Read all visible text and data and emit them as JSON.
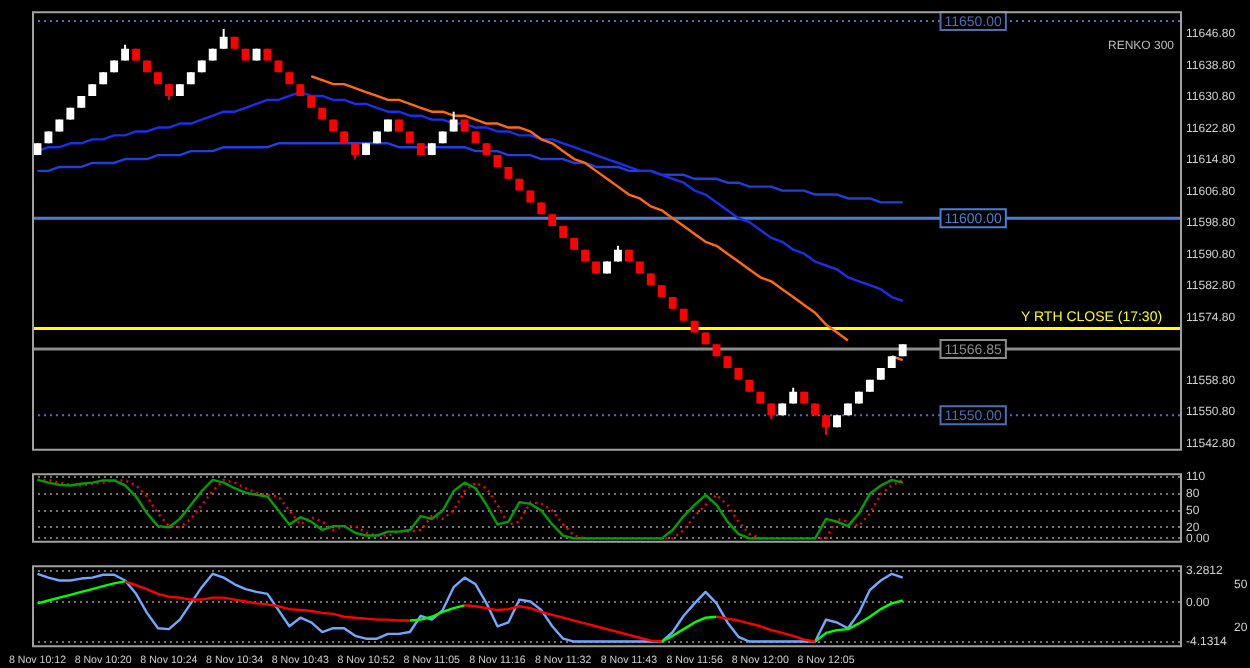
{
  "chart_data": [
    {
      "type": "candlestick",
      "tick_labels": "y",
      "legend": false,
      "marker": "none",
      "annotations": [
        "RENKO 300",
        {
          "text": "Y RTH CLOSE (17:30)",
          "y": 11572
        }
      ],
      "categories": [
        null,
        null,
        null,
        null,
        null,
        null,
        null,
        null,
        null,
        null,
        null,
        null,
        null,
        null,
        null,
        null,
        null,
        null,
        null,
        null,
        null,
        null,
        null,
        null,
        null,
        null,
        null,
        null,
        null,
        null,
        null,
        null,
        null,
        null,
        null,
        null,
        null,
        null,
        null,
        null,
        null,
        null,
        null,
        null,
        null,
        null,
        null,
        null,
        null,
        null,
        null,
        null,
        null,
        null,
        null,
        null,
        null,
        null,
        null,
        null,
        null,
        null,
        null,
        null,
        null,
        null,
        null,
        null,
        null,
        null,
        null,
        null,
        null,
        null,
        null,
        null,
        null,
        null,
        null,
        null,
        null,
        null,
        null,
        null,
        null,
        null,
        null,
        null,
        null,
        null,
        null,
        null,
        null,
        null,
        null,
        null,
        null,
        null,
        null,
        null,
        null,
        null,
        null,
        null,
        null
      ],
      "ohlc": [
        [
          11616,
          11619,
          11616,
          11619
        ],
        [
          11619,
          11622,
          11619,
          11622
        ],
        [
          11622,
          11625,
          11622,
          11625
        ],
        [
          11625,
          11628,
          11625,
          11628
        ],
        [
          11628,
          11631,
          11628,
          11631
        ],
        [
          11631,
          11634,
          11631,
          11634
        ],
        [
          11634,
          11637,
          11634,
          11637
        ],
        [
          11637,
          11640,
          11637,
          11640
        ],
        [
          11640,
          11644,
          11640,
          11643
        ],
        [
          11643,
          11643,
          11640,
          11640
        ],
        [
          11640,
          11640,
          11637,
          11637
        ],
        [
          11637,
          11637,
          11634,
          11634
        ],
        [
          11634,
          11634,
          11630,
          11631
        ],
        [
          11631,
          11634,
          11631,
          11634
        ],
        [
          11634,
          11637,
          11634,
          11637
        ],
        [
          11637,
          11640,
          11637,
          11640
        ],
        [
          11640,
          11643,
          11640,
          11643
        ],
        [
          11643,
          11648,
          11643,
          11646
        ],
        [
          11646,
          11646,
          11643,
          11643
        ],
        [
          11643,
          11643,
          11640,
          11640
        ],
        [
          11640,
          11643,
          11640,
          11643
        ],
        [
          11643,
          11643,
          11640,
          11640
        ],
        [
          11640,
          11640,
          11637,
          11637
        ],
        [
          11637,
          11637,
          11634,
          11634
        ],
        [
          11634,
          11634,
          11631,
          11631
        ],
        [
          11631,
          11631,
          11628,
          11628
        ],
        [
          11628,
          11628,
          11625,
          11625
        ],
        [
          11625,
          11625,
          11622,
          11622
        ],
        [
          11622,
          11622,
          11619,
          11619
        ],
        [
          11619,
          11619,
          11615,
          11616
        ],
        [
          11616,
          11619,
          11616,
          11619
        ],
        [
          11619,
          11622,
          11619,
          11622
        ],
        [
          11622,
          11625,
          11622,
          11625
        ],
        [
          11625,
          11625,
          11622,
          11622
        ],
        [
          11622,
          11622,
          11619,
          11619
        ],
        [
          11619,
          11619,
          11616,
          11616
        ],
        [
          11616,
          11619,
          11616,
          11619
        ],
        [
          11619,
          11622,
          11619,
          11622
        ],
        [
          11622,
          11627,
          11622,
          11625
        ],
        [
          11625,
          11625,
          11622,
          11622
        ],
        [
          11622,
          11622,
          11619,
          11619
        ],
        [
          11619,
          11619,
          11616,
          11616
        ],
        [
          11616,
          11616,
          11613,
          11613
        ],
        [
          11613,
          11613,
          11610,
          11610
        ],
        [
          11610,
          11610,
          11607,
          11607
        ],
        [
          11607,
          11607,
          11604,
          11604
        ],
        [
          11604,
          11604,
          11601,
          11601
        ],
        [
          11601,
          11601,
          11598,
          11598
        ],
        [
          11598,
          11598,
          11595,
          11595
        ],
        [
          11595,
          11595,
          11592,
          11592
        ],
        [
          11592,
          11592,
          11589,
          11589
        ],
        [
          11589,
          11589,
          11586,
          11586
        ],
        [
          11586,
          11589,
          11586,
          11589
        ],
        [
          11589,
          11593,
          11589,
          11592
        ],
        [
          11592,
          11592,
          11589,
          11589
        ],
        [
          11589,
          11589,
          11586,
          11586
        ],
        [
          11586,
          11586,
          11583,
          11583
        ],
        [
          11583,
          11583,
          11580,
          11580
        ],
        [
          11580,
          11580,
          11577,
          11577
        ],
        [
          11577,
          11577,
          11574,
          11574
        ],
        [
          11574,
          11574,
          11571,
          11571
        ],
        [
          11571,
          11571,
          11568,
          11568
        ],
        [
          11568,
          11568,
          11565,
          11565
        ],
        [
          11565,
          11565,
          11562,
          11562
        ],
        [
          11562,
          11562,
          11559,
          11559
        ],
        [
          11559,
          11559,
          11556,
          11556
        ],
        [
          11556,
          11556,
          11553,
          11553
        ],
        [
          11553,
          11553,
          11549,
          11550
        ],
        [
          11550,
          11553,
          11550,
          11553
        ],
        [
          11553,
          11557,
          11553,
          11556
        ],
        [
          11556,
          11556,
          11553,
          11553
        ],
        [
          11553,
          11553,
          11550,
          11550
        ],
        [
          11550,
          11550,
          11545,
          11547
        ],
        [
          11547,
          11550,
          11547,
          11550
        ],
        [
          11550,
          11553,
          11550,
          11553
        ],
        [
          11553,
          11556,
          11553,
          11556
        ],
        [
          11556,
          11559,
          11556,
          11559
        ],
        [
          11559,
          11562,
          11559,
          11562
        ],
        [
          11562,
          11565,
          11562,
          11565
        ],
        [
          11565,
          11568,
          11565,
          11568
        ],
        null,
        null,
        null,
        null,
        null,
        null,
        null,
        null,
        null,
        null,
        null,
        null,
        null,
        null,
        null,
        null,
        null,
        null,
        null,
        null,
        null,
        null,
        null,
        null,
        null
      ],
      "colors": [
        "#ffffff",
        "#ffffff",
        "#ffffff",
        "#ffffff",
        "#ffffff",
        "#ffffff",
        "#ffffff",
        "#ffffff",
        "#ffffff",
        "#ff0000",
        "#ff0000",
        "#ff0000",
        "#ff0000",
        "#ffffff",
        "#ffffff",
        "#ffffff",
        "#ffffff",
        "#ffffff",
        "#ff0000",
        "#ff0000",
        "#ffffff",
        "#ff0000",
        "#ff0000",
        "#ff0000",
        "#ff0000",
        "#ff0000",
        "#ff0000",
        "#ff0000",
        "#ff0000",
        "#ff0000",
        "#ffffff",
        "#ffffff",
        "#ffffff",
        "#ff0000",
        "#ff0000",
        "#ff0000",
        "#ffffff",
        "#ffffff",
        "#ffffff",
        "#ff0000",
        "#ff0000",
        "#ff0000",
        "#ff0000",
        "#ff0000",
        "#ff0000",
        "#ff0000",
        "#ff0000",
        "#ff0000",
        "#ff0000",
        "#ff0000",
        "#ff0000",
        "#ff0000",
        "#ffffff",
        "#ffffff",
        "#ff0000",
        "#ff0000",
        "#ff0000",
        "#ff0000",
        "#ff0000",
        "#ff0000",
        "#ff0000",
        "#ff0000",
        "#ff0000",
        "#ff0000",
        "#ff0000",
        "#ff0000",
        "#ff0000",
        "#ff0000",
        "#ffffff",
        "#ffffff",
        "#ff0000",
        "#ff0000",
        "#ff0000",
        "#ffffff",
        "#ffffff",
        "#ffffff",
        "#ffffff",
        "#ffffff",
        "#ffffff",
        "#ffffff",
        null,
        null,
        null,
        null,
        null,
        null,
        null,
        null,
        null,
        null,
        null,
        null,
        null,
        null,
        null,
        null,
        null,
        null,
        null,
        null,
        null,
        null,
        null,
        null,
        null
      ],
      "series": [
        {
          "type": "line",
          "color": "#1f3fe0",
          "values": [
            11612,
            11612,
            11613,
            11613,
            11613,
            11614,
            11614,
            11614,
            11615,
            11615,
            11615,
            11616,
            11616,
            11616,
            11617,
            11617,
            11617,
            11618,
            11618,
            11618,
            11618,
            11618,
            11619,
            11619,
            11619,
            11619,
            11619,
            11619,
            11619,
            11619,
            11619,
            11619,
            11619,
            11618,
            11618,
            11618,
            11618,
            11618,
            11618,
            11618,
            11617,
            11617,
            11617,
            11616,
            11616,
            11616,
            11615,
            11615,
            11615,
            11614,
            11614,
            11613,
            11613,
            11613,
            11612,
            11612,
            11612,
            11611,
            11611,
            11611,
            11610,
            11610,
            11610,
            11609,
            11609,
            11608,
            11608,
            11608,
            11607,
            11607,
            11607,
            11606,
            11606,
            11606,
            11605,
            11605,
            11605,
            11604,
            11604,
            11604,
            null,
            null,
            null,
            null,
            null,
            null,
            null,
            null,
            null,
            null,
            null,
            null,
            null,
            null,
            null,
            null,
            null,
            null,
            null,
            null,
            null,
            null,
            null,
            null,
            null
          ]
        },
        {
          "type": "line",
          "color": "#1c2ee8",
          "values": [
            11617,
            11618,
            11618,
            11619,
            11619,
            11620,
            11620,
            11621,
            11621,
            11622,
            11622,
            11623,
            11623,
            11624,
            11624,
            11625,
            11626,
            11627,
            11627,
            11628,
            11629,
            11630,
            11630,
            11631,
            11632,
            11631,
            11631,
            11630,
            11630,
            11629,
            11629,
            11628,
            11627,
            11627,
            11626,
            11626,
            11625,
            11625,
            11624,
            11624,
            11623,
            11623,
            11622,
            11622,
            11621,
            11621,
            11620,
            11620,
            11619,
            11618,
            11617,
            11616,
            11615,
            11614,
            11613,
            11612,
            11612,
            11611,
            11610,
            11609,
            11607,
            11606,
            11604,
            11602,
            11600,
            11599,
            11597,
            11595,
            11594,
            11592,
            11591,
            11589,
            11588,
            11587,
            11585,
            11584,
            11583,
            11582,
            11580,
            11579,
            null,
            null,
            null,
            null,
            null,
            null,
            null,
            null,
            null,
            null,
            null,
            null,
            null,
            null,
            null,
            null,
            null,
            null,
            null,
            null,
            null,
            null,
            null,
            null,
            null
          ]
        },
        {
          "type": "line",
          "color": "#ff6a10",
          "values": [
            null,
            null,
            null,
            null,
            null,
            null,
            null,
            null,
            null,
            null,
            null,
            null,
            null,
            null,
            null,
            null,
            null,
            null,
            null,
            null,
            null,
            null,
            null,
            null,
            null,
            11636,
            11635,
            11634,
            11634,
            11633,
            11632,
            11631,
            11630,
            11630,
            11629,
            11628,
            11627,
            11627,
            11626,
            11626,
            11625,
            11624,
            11624,
            11623,
            11623,
            11622,
            11620,
            11619,
            11617,
            11615,
            11614,
            11612,
            11610,
            11608,
            11606,
            11605,
            11603,
            11602,
            11600,
            11598,
            11596,
            11594,
            11593,
            11591,
            11589,
            11587,
            11585,
            11584,
            11582,
            11580,
            11578,
            11576,
            11573,
            11571,
            11569,
            null,
            null,
            null,
            11565,
            11564,
            null,
            null,
            null,
            null,
            null,
            null,
            null,
            null,
            null,
            null,
            null,
            null,
            null,
            null,
            null,
            null,
            null,
            null,
            null,
            null,
            null,
            null,
            null,
            null,
            null
          ]
        }
      ],
      "ref_lines": [
        {
          "axis": "y",
          "value": 11650,
          "label": "11650.00",
          "color": "#4a6fb5",
          "line_style": "dotted"
        },
        {
          "axis": "y",
          "value": 11600,
          "label": "11600.00",
          "color": "#4a7fd8",
          "line_style": "solid"
        },
        {
          "axis": "y",
          "value": 11550,
          "label": "11550.00",
          "color": "#4a6fb5",
          "line_style": "dotted"
        },
        {
          "axis": "y",
          "value": 11572,
          "color": "#ffff00",
          "line_style": "solid"
        },
        {
          "axis": "y",
          "value": 11566.85,
          "label": "11566.85",
          "color": "#8c8c8c",
          "line_style": "solid"
        }
      ],
      "ylim": [
        11541,
        11652.5
      ],
      "yticks": [
        {
          "value": 11542.8,
          "label": "11542.80"
        },
        {
          "value": 11550.8,
          "label": "11550.80"
        },
        {
          "value": 11558.8,
          "label": "11558.80"
        },
        {
          "value": 11574.8,
          "label": "11574.80"
        },
        {
          "value": 11582.8,
          "label": "11582.80"
        },
        {
          "value": 11590.8,
          "label": "11590.80"
        },
        {
          "value": 11598.8,
          "label": "11598.80"
        },
        {
          "value": 11606.8,
          "label": "11606.80"
        },
        {
          "value": 11614.8,
          "label": "11614.80"
        },
        {
          "value": 11622.8,
          "label": "11622.80"
        },
        {
          "value": 11630.8,
          "label": "11630.80"
        },
        {
          "value": 11638.8,
          "label": "11638.80"
        },
        {
          "value": 11646.8,
          "label": "11646.80"
        }
      ]
    },
    {
      "type": "line",
      "tick_labels": "y",
      "legend": false,
      "marker": "none",
      "grid": "y",
      "categories": [
        null,
        null,
        null,
        null,
        null,
        null,
        null,
        null,
        null,
        null,
        null,
        null,
        null,
        null,
        null,
        null,
        null,
        null,
        null,
        null,
        null,
        null,
        null,
        null,
        null,
        null,
        null,
        null,
        null,
        null,
        null,
        null,
        null,
        null,
        null,
        null,
        null,
        null,
        null,
        null,
        null,
        null,
        null,
        null,
        null,
        null,
        null,
        null,
        null,
        null,
        null,
        null,
        null,
        null,
        null,
        null,
        null,
        null,
        null,
        null,
        null,
        null,
        null,
        null,
        null,
        null,
        null,
        null,
        null,
        null,
        null,
        null,
        null,
        null,
        null,
        null,
        null,
        null,
        null,
        null,
        null,
        null,
        null,
        null,
        null,
        null,
        null,
        null,
        null,
        null,
        null,
        null,
        null,
        null,
        null,
        null,
        null,
        null,
        null,
        null,
        null,
        null,
        null,
        null,
        null
      ],
      "series": [
        {
          "type": "line",
          "color": "#ff0000",
          "line_style": "dotted",
          "values": [
            105,
            105,
            100,
            96,
            95,
            98,
            100,
            104,
            104,
            95,
            75,
            45,
            22,
            20,
            35,
            60,
            85,
            105,
            100,
            90,
            82,
            78,
            75,
            50,
            25,
            38,
            30,
            15,
            22,
            22,
            10,
            5,
            5,
            12,
            12,
            15,
            40,
            35,
            50,
            85,
            100,
            90,
            60,
            25,
            30,
            65,
            62,
            50,
            25,
            5,
            0,
            0,
            0,
            0,
            0,
            0,
            0,
            0,
            0,
            15,
            40,
            60,
            78,
            60,
            30,
            8,
            0,
            0,
            0,
            0,
            0,
            0,
            0,
            35,
            30,
            22,
            45,
            80,
            95,
            105,
            null,
            null,
            null,
            null,
            null,
            null,
            null,
            null,
            null,
            null,
            null,
            null,
            null,
            null,
            null,
            null,
            null,
            null,
            null,
            null,
            null,
            null,
            null,
            null,
            null
          ]
        },
        {
          "type": "line",
          "color": "#00a000",
          "line_style": "solid",
          "values": [
            105,
            100,
            96,
            95,
            98,
            100,
            104,
            104,
            95,
            75,
            45,
            22,
            20,
            35,
            60,
            85,
            105,
            100,
            90,
            82,
            78,
            75,
            50,
            25,
            38,
            30,
            15,
            22,
            22,
            10,
            5,
            5,
            12,
            12,
            15,
            40,
            35,
            50,
            85,
            100,
            90,
            60,
            25,
            30,
            65,
            62,
            50,
            25,
            5,
            0,
            0,
            0,
            0,
            0,
            0,
            0,
            0,
            0,
            15,
            40,
            60,
            78,
            60,
            30,
            8,
            0,
            0,
            0,
            0,
            0,
            0,
            0,
            35,
            30,
            22,
            45,
            80,
            95,
            105,
            100,
            null,
            null,
            null,
            null,
            null,
            null,
            null,
            null,
            null,
            null,
            null,
            null,
            null,
            null,
            null,
            null,
            null,
            null,
            null,
            null,
            null,
            null,
            null,
            null,
            null
          ]
        }
      ],
      "ylim": [
        -8,
        117
      ],
      "yticks": [
        {
          "value": 0,
          "label": "0.00"
        },
        20,
        50,
        80,
        110
      ]
    },
    {
      "type": "line",
      "legend": false,
      "marker": "none",
      "grid": "y",
      "categories": [
        "8 Nov 10:12",
        null,
        null,
        null,
        null,
        null,
        "8 Nov 10:20",
        null,
        null,
        null,
        null,
        null,
        "8 Nov 10:24",
        null,
        null,
        null,
        null,
        null,
        "8 Nov 10:34",
        null,
        null,
        null,
        null,
        null,
        "8 Nov 10:43",
        null,
        null,
        null,
        null,
        null,
        "8 Nov 10:52",
        null,
        null,
        null,
        null,
        null,
        "8 Nov 11:05",
        null,
        null,
        null,
        null,
        null,
        "8 Nov 11:16",
        null,
        null,
        null,
        null,
        null,
        "8 Nov 11:32",
        null,
        null,
        null,
        null,
        null,
        "8 Nov 11:43",
        null,
        null,
        null,
        null,
        null,
        "8 Nov 11:56",
        null,
        null,
        null,
        null,
        null,
        "8 Nov 12:00",
        null,
        null,
        null,
        null,
        null,
        "8 Nov 12:05",
        null,
        null,
        null,
        null,
        null,
        null,
        null,
        null,
        null,
        null,
        null,
        null,
        null,
        null,
        null,
        null,
        null,
        null,
        null,
        null,
        null,
        null,
        null,
        null,
        null,
        null,
        null,
        null,
        null,
        null,
        null,
        null
      ],
      "series": [
        {
          "type": "line",
          "color": "#6fa8ff",
          "line_style": "solid",
          "values": [
            3.0,
            2.6,
            2.3,
            2.3,
            2.5,
            2.6,
            2.9,
            2.9,
            2.3,
            0.9,
            -1.1,
            -2.7,
            -2.8,
            -1.8,
            -0.1,
            1.6,
            3.0,
            2.6,
            1.9,
            1.4,
            1.1,
            0.9,
            -0.8,
            -2.5,
            -1.6,
            -2.1,
            -3.1,
            -2.7,
            -2.7,
            -3.5,
            -3.8,
            -3.8,
            -3.3,
            -3.3,
            -3.1,
            -1.4,
            -1.8,
            -0.8,
            1.6,
            2.6,
            1.9,
            -0.1,
            -2.5,
            -2.1,
            0.3,
            0.1,
            -0.8,
            -2.5,
            -3.8,
            -4.1,
            -4.1,
            -4.1,
            -4.1,
            -4.1,
            -4.1,
            -4.1,
            -4.1,
            -4.1,
            -3.1,
            -1.4,
            -0.1,
            1.1,
            -0.1,
            -2.1,
            -3.6,
            -4.1,
            -4.1,
            -4.1,
            -4.1,
            -4.1,
            -4.1,
            -4.1,
            -1.8,
            -2.1,
            -2.7,
            -1.1,
            1.3,
            2.3,
            3.0,
            2.6,
            null,
            null,
            null,
            null,
            null,
            null,
            null,
            null,
            null,
            null,
            null,
            null,
            null,
            null,
            null,
            null,
            null,
            null,
            null,
            null,
            null,
            null,
            null,
            null,
            null
          ]
        },
        {
          "type": "line",
          "color": "#00ff00",
          "line_style": "solid",
          "values": [
            -0.1,
            0.2,
            0.5,
            0.8,
            1.1,
            1.4,
            1.7,
            2.0,
            2.2,
            null,
            null,
            null,
            null,
            null,
            null,
            null,
            null,
            null,
            null,
            null,
            null,
            null,
            null,
            null,
            null,
            null,
            null,
            null,
            null,
            null,
            null,
            null,
            null,
            null,
            -1.9,
            -1.8,
            -1.5,
            -1.0,
            -0.6,
            -0.3,
            null,
            null,
            null,
            null,
            null,
            null,
            null,
            null,
            null,
            null,
            null,
            null,
            null,
            null,
            null,
            null,
            null,
            -4.1,
            -3.5,
            -2.8,
            -2.1,
            -1.6,
            -1.5,
            null,
            null,
            null,
            null,
            null,
            null,
            null,
            null,
            -4.1,
            -3.2,
            -2.9,
            -2.8,
            -2.2,
            -1.5,
            -0.7,
            -0.1,
            0.2,
            null,
            null,
            null,
            null,
            null,
            null,
            null,
            null,
            null,
            null,
            null,
            null,
            null,
            null,
            null,
            null,
            null,
            null,
            null,
            null,
            null,
            null,
            null,
            null,
            null
          ]
        },
        {
          "type": "line",
          "color": "#ff0000",
          "line_style": "solid",
          "values": [
            null,
            null,
            null,
            null,
            null,
            null,
            null,
            null,
            2.2,
            1.8,
            1.4,
            0.9,
            0.6,
            0.5,
            0.3,
            0.3,
            0.5,
            0.5,
            0.3,
            0.1,
            -0.1,
            -0.2,
            -0.4,
            -0.7,
            -0.8,
            -0.9,
            -1.1,
            -1.2,
            -1.5,
            -1.6,
            -1.7,
            -1.8,
            -1.8,
            -1.9,
            -1.9,
            null,
            null,
            null,
            null,
            -0.3,
            -0.4,
            -0.6,
            -0.8,
            -0.7,
            -0.4,
            -0.6,
            -1.0,
            -1.3,
            -1.6,
            -1.9,
            -2.2,
            -2.5,
            -2.8,
            -3.1,
            -3.4,
            -3.7,
            -4.0,
            -4.1,
            null,
            null,
            null,
            null,
            -1.5,
            -1.7,
            -1.9,
            -2.2,
            -2.5,
            -2.9,
            -3.2,
            -3.5,
            -3.9,
            -4.1,
            null,
            null,
            null,
            null,
            null,
            null,
            null,
            null,
            null,
            null,
            null,
            null,
            null,
            null,
            null,
            null,
            null,
            null,
            null,
            null,
            null,
            null,
            null,
            null,
            null,
            null,
            null,
            null,
            null,
            null,
            null,
            null,
            null
          ]
        }
      ],
      "ylim": [
        -4.7,
        3.9
      ],
      "yticks": [
        -4.1314,
        {
          "value": 0,
          "label": "0.00"
        },
        3.2812
      ],
      "y2lim": [
        6,
        64
      ],
      "y2ticks": [
        20,
        50
      ]
    }
  ]
}
